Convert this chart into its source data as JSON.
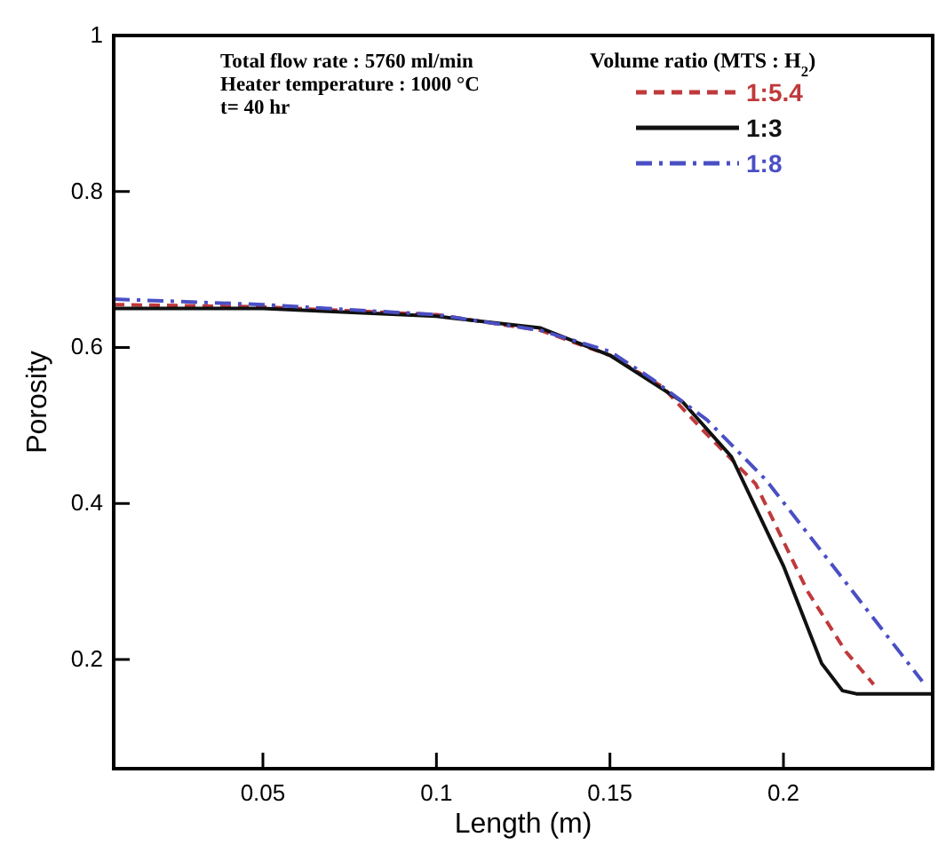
{
  "chart_data": {
    "type": "line",
    "xlabel": "Length (m)",
    "ylabel": "Porosity",
    "legend_title": "Volume ratio (MTS : H$_{2}$)",
    "legend": "top right",
    "annotations": [
      "Total flow rate : 5760 ml/min",
      "Heater temperature : 1000 °C",
      "t= 40 hr"
    ],
    "xlim": [
      0.007,
      0.243
    ],
    "xticks": [
      0.05,
      0.1,
      0.15,
      0.2
    ],
    "ylim": [
      0.06,
      1.0
    ],
    "yticks": [
      0.2,
      0.4,
      0.6,
      0.8,
      1
    ],
    "grid": false,
    "series": [
      {
        "name": "1:5.4",
        "color": "#c0393b",
        "line_style": "dashed",
        "x": [
          0.007,
          0.05,
          0.1,
          0.13,
          0.15,
          0.165,
          0.177,
          0.192,
          0.207,
          0.218,
          0.226
        ],
        "values": [
          0.655,
          0.652,
          0.642,
          0.622,
          0.59,
          0.55,
          0.493,
          0.425,
          0.287,
          0.21,
          0.168
        ]
      },
      {
        "name": "1:3",
        "color": "#111111",
        "line_style": "solid",
        "x": [
          0.007,
          0.05,
          0.1,
          0.13,
          0.15,
          0.171,
          0.185,
          0.2,
          0.211,
          0.217,
          0.221,
          0.243
        ],
        "values": [
          0.65,
          0.65,
          0.64,
          0.625,
          0.59,
          0.53,
          0.46,
          0.32,
          0.195,
          0.16,
          0.156,
          0.156
        ]
      },
      {
        "name": "1:8",
        "color": "#4a4fc4",
        "line_style": "dashdot",
        "x": [
          0.007,
          0.05,
          0.1,
          0.13,
          0.15,
          0.162,
          0.178,
          0.195,
          0.216,
          0.24
        ],
        "values": [
          0.662,
          0.655,
          0.642,
          0.622,
          0.595,
          0.56,
          0.507,
          0.43,
          0.31,
          0.172
        ]
      }
    ]
  }
}
